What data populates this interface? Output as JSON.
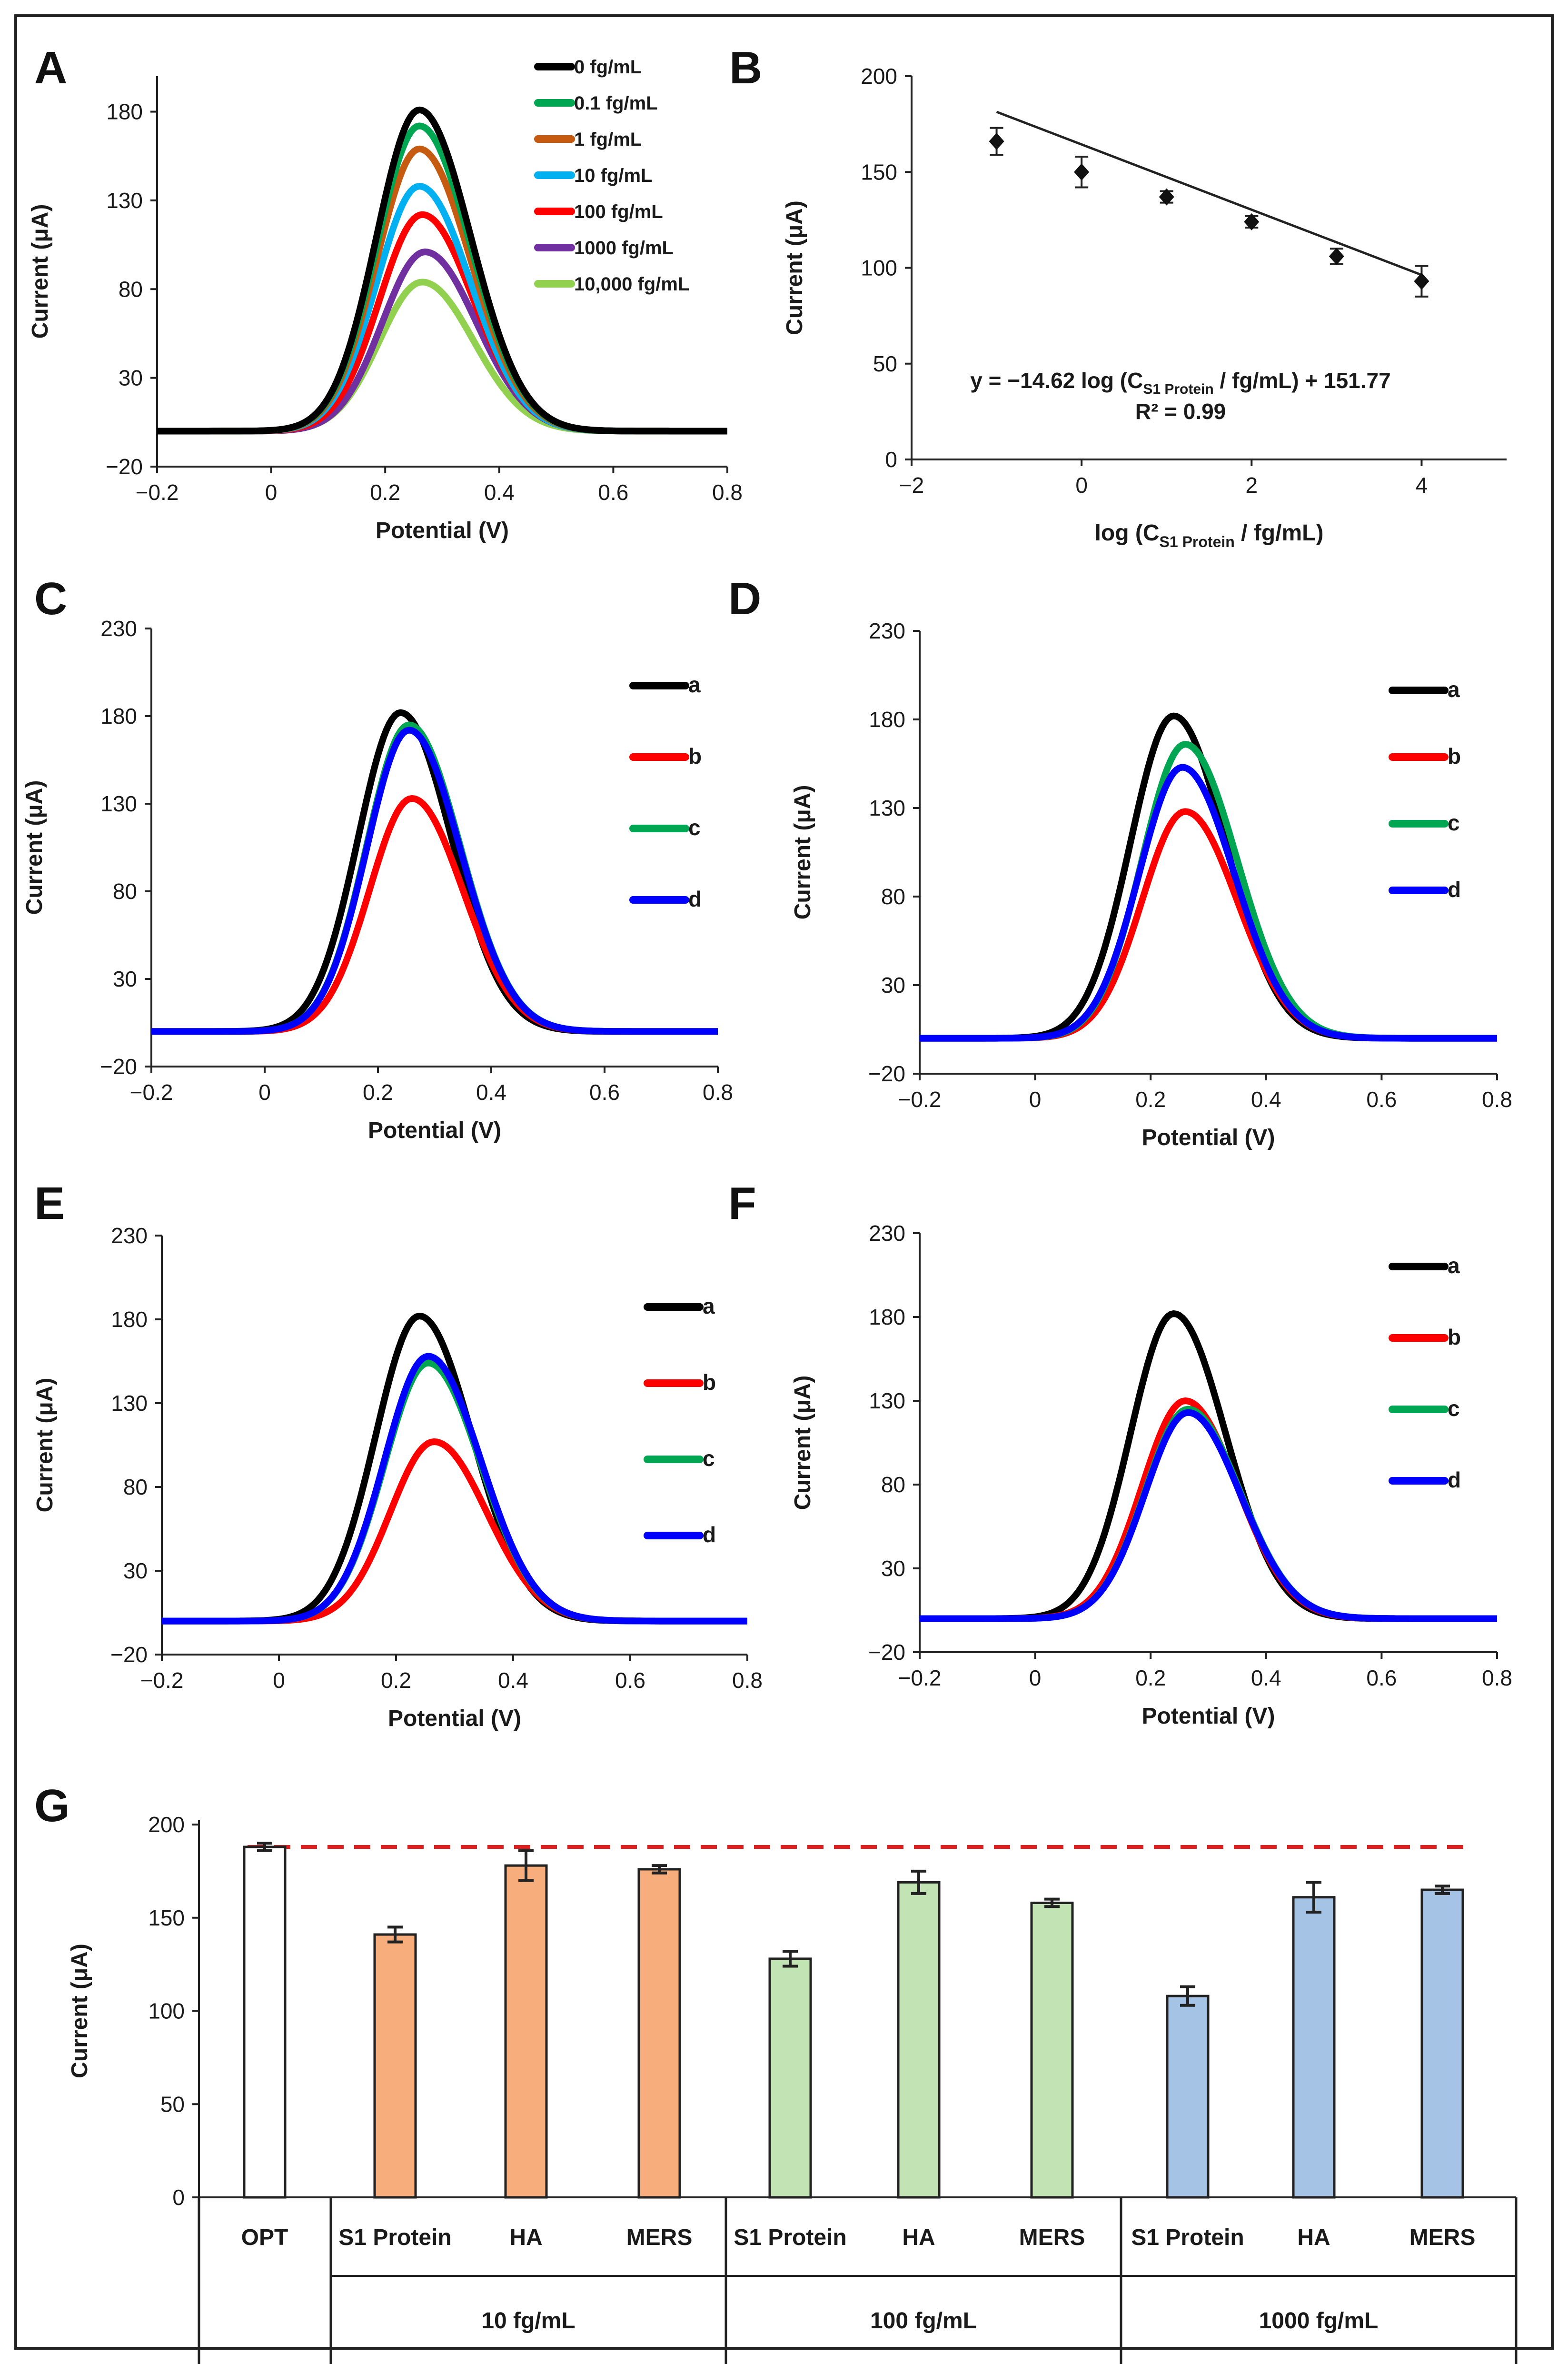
{
  "chart_data": [
    {
      "id": "A",
      "type": "line",
      "panel_label": "A",
      "xlabel": "Potential (V)",
      "ylabel": "Current (μA)",
      "xlim": [
        -0.2,
        0.8
      ],
      "ylim": [
        -20,
        200
      ],
      "xticks": [
        -0.2,
        0,
        0.2,
        0.4,
        0.6,
        0.8
      ],
      "xtick_labels": [
        "−0.2",
        "0",
        "0.2",
        "0.4",
        "0.6",
        "0.8"
      ],
      "yticks": [
        -20,
        30,
        80,
        130,
        180
      ],
      "ytick_labels": [
        "−20",
        "30",
        "80",
        "130",
        "180"
      ],
      "legend_position": "top-right",
      "series": [
        {
          "name": "0 fg/mL",
          "color": "#000000",
          "peak_potential": 0.26,
          "peak_current": 181,
          "baseline": 0
        },
        {
          "name": "0.1 fg/mL",
          "color": "#00a651",
          "peak_potential": 0.26,
          "peak_current": 172,
          "baseline": 0
        },
        {
          "name": "1 fg/mL",
          "color": "#c55a11",
          "peak_potential": 0.26,
          "peak_current": 159,
          "baseline": 0
        },
        {
          "name": "10 fg/mL",
          "color": "#00b0f0",
          "peak_potential": 0.26,
          "peak_current": 138,
          "baseline": 0
        },
        {
          "name": "100 fg/mL",
          "color": "#ff0000",
          "peak_potential": 0.265,
          "peak_current": 122,
          "baseline": 0
        },
        {
          "name": "1000 fg/mL",
          "color": "#7030a0",
          "peak_potential": 0.27,
          "peak_current": 101,
          "baseline": 0
        },
        {
          "name": "10,000 fg/mL",
          "color": "#92d050",
          "peak_potential": 0.265,
          "peak_current": 84,
          "baseline": 0
        }
      ]
    },
    {
      "id": "B",
      "type": "scatter",
      "panel_label": "B",
      "xlabel_parts": [
        "log (C",
        "S1 Protein",
        " / fg/mL)"
      ],
      "ylabel": "Current (μA)",
      "xlim": [
        -2,
        5
      ],
      "ylim": [
        0,
        200
      ],
      "xticks": [
        -2,
        0,
        2,
        4
      ],
      "xtick_labels": [
        "−2",
        "0",
        "2",
        "4"
      ],
      "yticks": [
        0,
        50,
        100,
        150,
        200
      ],
      "ytick_labels": [
        "0",
        "50",
        "100",
        "150",
        "200"
      ],
      "x": [
        -1,
        0,
        1,
        2,
        3,
        4
      ],
      "y": [
        166,
        150,
        137,
        124,
        106,
        93
      ],
      "error": [
        7,
        8,
        3,
        3,
        4,
        8
      ],
      "fit": {
        "slope": -14.62,
        "intercept": 151.77
      },
      "equation_parts": [
        "y = −14.62 log (C",
        "S1 Protein",
        " / fg/mL) + 151.77"
      ],
      "r2_text": "R² = 0.99"
    },
    {
      "id": "C",
      "type": "line",
      "panel_label": "C",
      "xlabel": "Potential (V)",
      "ylabel": "Current (μA)",
      "xlim": [
        -0.2,
        0.8
      ],
      "ylim": [
        -20,
        230
      ],
      "xticks": [
        -0.2,
        0,
        0.2,
        0.4,
        0.6,
        0.8
      ],
      "xtick_labels": [
        "−0.2",
        "0",
        "0.2",
        "0.4",
        "0.6",
        "0.8"
      ],
      "yticks": [
        -20,
        30,
        80,
        130,
        180,
        230
      ],
      "ytick_labels": [
        "−20",
        "30",
        "80",
        "130",
        "180",
        "230"
      ],
      "legend_position": "right",
      "series": [
        {
          "name": "a",
          "color": "#000000",
          "peak_potential": 0.24,
          "peak_current": 182,
          "baseline": 0
        },
        {
          "name": "b",
          "color": "#ff0000",
          "peak_potential": 0.26,
          "peak_current": 133,
          "baseline": 0
        },
        {
          "name": "c",
          "color": "#00a651",
          "peak_potential": 0.255,
          "peak_current": 175,
          "baseline": 0
        },
        {
          "name": "d",
          "color": "#0000ff",
          "peak_potential": 0.255,
          "peak_current": 172,
          "baseline": 0
        }
      ]
    },
    {
      "id": "D",
      "type": "line",
      "panel_label": "D",
      "xlabel": "Potential (V)",
      "ylabel": "Current (μA)",
      "xlim": [
        -0.2,
        0.8
      ],
      "ylim": [
        -20,
        230
      ],
      "xticks": [
        -0.2,
        0,
        0.2,
        0.4,
        0.6,
        0.8
      ],
      "xtick_labels": [
        "−0.2",
        "0",
        "0.2",
        "0.4",
        "0.6",
        "0.8"
      ],
      "yticks": [
        -20,
        30,
        80,
        130,
        180,
        230
      ],
      "ytick_labels": [
        "−20",
        "30",
        "80",
        "130",
        "180",
        "230"
      ],
      "legend_position": "right",
      "series": [
        {
          "name": "a",
          "color": "#000000",
          "peak_potential": 0.24,
          "peak_current": 182,
          "baseline": 0
        },
        {
          "name": "b",
          "color": "#ff0000",
          "peak_potential": 0.26,
          "peak_current": 128,
          "baseline": 0
        },
        {
          "name": "c",
          "color": "#00a651",
          "peak_potential": 0.26,
          "peak_current": 166,
          "baseline": 0
        },
        {
          "name": "d",
          "color": "#0000ff",
          "peak_potential": 0.255,
          "peak_current": 153,
          "baseline": 0
        }
      ]
    },
    {
      "id": "E",
      "type": "line",
      "panel_label": "E",
      "xlabel": "Potential (V)",
      "ylabel": "Current (μA)",
      "xlim": [
        -0.2,
        0.8
      ],
      "ylim": [
        -20,
        230
      ],
      "xticks": [
        -0.2,
        0,
        0.2,
        0.4,
        0.6,
        0.8
      ],
      "xtick_labels": [
        "−0.2",
        "0",
        "0.2",
        "0.4",
        "0.6",
        "0.8"
      ],
      "yticks": [
        -20,
        30,
        80,
        130,
        180,
        230
      ],
      "ytick_labels": [
        "−20",
        "30",
        "80",
        "130",
        "180",
        "230"
      ],
      "legend_position": "right",
      "series": [
        {
          "name": "a",
          "color": "#000000",
          "peak_potential": 0.24,
          "peak_current": 182,
          "baseline": 0
        },
        {
          "name": "b",
          "color": "#ff0000",
          "peak_potential": 0.265,
          "peak_current": 107,
          "baseline": 0
        },
        {
          "name": "c",
          "color": "#00a651",
          "peak_potential": 0.255,
          "peak_current": 154,
          "baseline": 0
        },
        {
          "name": "d",
          "color": "#0000ff",
          "peak_potential": 0.255,
          "peak_current": 158,
          "baseline": 0
        }
      ]
    },
    {
      "id": "F",
      "type": "line",
      "panel_label": "F",
      "xlabel": "Potential (V)",
      "ylabel": "Current (μA)",
      "xlim": [
        -0.2,
        0.8
      ],
      "ylim": [
        -20,
        230
      ],
      "xticks": [
        -0.2,
        0,
        0.2,
        0.4,
        0.6,
        0.8
      ],
      "xtick_labels": [
        "−0.2",
        "0",
        "0.2",
        "0.4",
        "0.6",
        "0.8"
      ],
      "yticks": [
        -20,
        30,
        80,
        130,
        180,
        230
      ],
      "ytick_labels": [
        "−20",
        "30",
        "80",
        "130",
        "180",
        "230"
      ],
      "legend_position": "right",
      "series": [
        {
          "name": "a",
          "color": "#000000",
          "peak_potential": 0.24,
          "peak_current": 182,
          "baseline": 0
        },
        {
          "name": "b",
          "color": "#ff0000",
          "peak_potential": 0.26,
          "peak_current": 130,
          "baseline": 0
        },
        {
          "name": "c",
          "color": "#00a651",
          "peak_potential": 0.265,
          "peak_current": 125,
          "baseline": 0
        },
        {
          "name": "d",
          "color": "#0000ff",
          "peak_potential": 0.265,
          "peak_current": 123,
          "baseline": 0
        }
      ]
    },
    {
      "id": "G",
      "type": "bar",
      "panel_label": "G",
      "ylabel": "Current (μA)",
      "ylim": [
        0,
        200
      ],
      "yticks": [
        0,
        50,
        100,
        150,
        200
      ],
      "ytick_labels": [
        "0",
        "50",
        "100",
        "150",
        "200"
      ],
      "reference_line": 188,
      "reference_color": "#e01e1e",
      "bars": [
        {
          "label": "OPT",
          "value": 188,
          "error": 2,
          "color": "#ffffff",
          "group": 0
        },
        {
          "label": "S1 Protein",
          "value": 141,
          "error": 4,
          "color": "#f8ad7c",
          "group": 1
        },
        {
          "label": "HA",
          "value": 178,
          "error": 8,
          "color": "#f8ad7c",
          "group": 1
        },
        {
          "label": "MERS",
          "value": 176,
          "error": 2,
          "color": "#f8ad7c",
          "group": 1
        },
        {
          "label": "S1 Protein",
          "value": 128,
          "error": 4,
          "color": "#c2e3b4",
          "group": 2
        },
        {
          "label": "HA",
          "value": 169,
          "error": 6,
          "color": "#c2e3b4",
          "group": 2
        },
        {
          "label": "MERS",
          "value": 158,
          "error": 2,
          "color": "#c2e3b4",
          "group": 2
        },
        {
          "label": "S1 Protein",
          "value": 108,
          "error": 5,
          "color": "#a5c3e5",
          "group": 3
        },
        {
          "label": "HA",
          "value": 161,
          "error": 8,
          "color": "#a5c3e5",
          "group": 3
        },
        {
          "label": "MERS",
          "value": 165,
          "error": 2,
          "color": "#a5c3e5",
          "group": 3
        }
      ],
      "groups": [
        "",
        "10 fg/mL",
        "100 fg/mL",
        "1000 fg/mL"
      ]
    }
  ]
}
